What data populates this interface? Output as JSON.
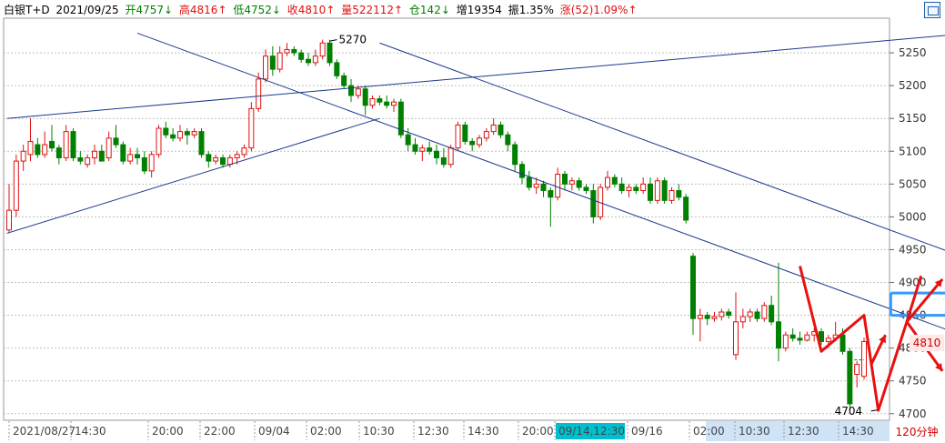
{
  "header": {
    "symbol": "白银T+D",
    "date": "2021/09/25",
    "open": "开4757↓",
    "high": "高4816↑",
    "low": "低4752↓",
    "close": "收4810↑",
    "volume": "量522112↑",
    "open_interest": "仓142↓",
    "increase": "增19354",
    "amplitude": "振1.35%",
    "change": "涨(52)1.09%↑"
  },
  "period_label": "120分钟",
  "current_price_tag": "4810",
  "annotations": {
    "high_label": "5270",
    "low_label": "4704"
  },
  "colors": {
    "up": "#e01010",
    "down": "#008000",
    "trend_line": "#1a3a8a",
    "highlight_box": "#3399ff",
    "arrow": "#e81010",
    "grid": "#bfbfbf"
  },
  "chart_data": {
    "type": "candlestick",
    "ylim": [
      4690,
      5300
    ],
    "y_ticks": [
      4700,
      4750,
      4800,
      4850,
      4900,
      4950,
      5000,
      5050,
      5100,
      5150,
      5200,
      5250
    ],
    "x_labels": [
      "2021/08/27",
      "14:30",
      "20:00",
      "22:00",
      "09/04",
      "02:00",
      "10:30",
      "12:30",
      "14:30",
      "20:00",
      "09/14,12:30",
      "09/16",
      "02:00",
      "10:30",
      "12:30",
      "14:30"
    ],
    "x_highlight": "09/14,12:30",
    "candles": [
      [
        4980,
        5050,
        4975,
        5010
      ],
      [
        5010,
        5095,
        5000,
        5085
      ],
      [
        5085,
        5110,
        5070,
        5100
      ],
      [
        5095,
        5150,
        5085,
        5115
      ],
      [
        5110,
        5120,
        5090,
        5095
      ],
      [
        5095,
        5130,
        5090,
        5110
      ],
      [
        5115,
        5140,
        5100,
        5105
      ],
      [
        5105,
        5110,
        5080,
        5090
      ],
      [
        5090,
        5140,
        5085,
        5130
      ],
      [
        5130,
        5135,
        5085,
        5090
      ],
      [
        5090,
        5100,
        5080,
        5085
      ],
      [
        5080,
        5095,
        5075,
        5090
      ],
      [
        5090,
        5110,
        5080,
        5100
      ],
      [
        5100,
        5110,
        5085,
        5085
      ],
      [
        5090,
        5130,
        5085,
        5120
      ],
      [
        5120,
        5140,
        5105,
        5110
      ],
      [
        5110,
        5115,
        5080,
        5085
      ],
      [
        5085,
        5105,
        5080,
        5095
      ],
      [
        5095,
        5105,
        5080,
        5090
      ],
      [
        5090,
        5100,
        5065,
        5070
      ],
      [
        5070,
        5100,
        5060,
        5095
      ],
      [
        5095,
        5140,
        5090,
        5135
      ],
      [
        5135,
        5145,
        5120,
        5125
      ],
      [
        5125,
        5135,
        5115,
        5120
      ],
      [
        5120,
        5140,
        5115,
        5130
      ],
      [
        5130,
        5135,
        5110,
        5125
      ],
      [
        5125,
        5135,
        5120,
        5130
      ],
      [
        5130,
        5135,
        5090,
        5095
      ],
      [
        5095,
        5100,
        5075,
        5085
      ],
      [
        5085,
        5095,
        5080,
        5090
      ],
      [
        5090,
        5095,
        5075,
        5080
      ],
      [
        5080,
        5095,
        5075,
        5090
      ],
      [
        5090,
        5100,
        5080,
        5095
      ],
      [
        5095,
        5110,
        5090,
        5105
      ],
      [
        5105,
        5175,
        5100,
        5165
      ],
      [
        5165,
        5220,
        5160,
        5210
      ],
      [
        5210,
        5255,
        5205,
        5245
      ],
      [
        5245,
        5260,
        5215,
        5225
      ],
      [
        5225,
        5260,
        5220,
        5250
      ],
      [
        5250,
        5265,
        5245,
        5255
      ],
      [
        5255,
        5260,
        5245,
        5250
      ],
      [
        5250,
        5255,
        5235,
        5240
      ],
      [
        5240,
        5250,
        5230,
        5235
      ],
      [
        5235,
        5255,
        5230,
        5245
      ],
      [
        5245,
        5270,
        5240,
        5265
      ],
      [
        5265,
        5270,
        5230,
        5235
      ],
      [
        5235,
        5240,
        5210,
        5215
      ],
      [
        5215,
        5220,
        5195,
        5200
      ],
      [
        5200,
        5210,
        5175,
        5185
      ],
      [
        5185,
        5200,
        5180,
        5195
      ],
      [
        5195,
        5200,
        5155,
        5170
      ],
      [
        5170,
        5185,
        5165,
        5180
      ],
      [
        5180,
        5185,
        5170,
        5175
      ],
      [
        5175,
        5185,
        5165,
        5170
      ],
      [
        5170,
        5180,
        5160,
        5175
      ],
      [
        5175,
        5180,
        5120,
        5125
      ],
      [
        5125,
        5135,
        5100,
        5110
      ],
      [
        5110,
        5120,
        5095,
        5100
      ],
      [
        5100,
        5110,
        5085,
        5105
      ],
      [
        5105,
        5115,
        5095,
        5100
      ],
      [
        5100,
        5110,
        5080,
        5090
      ],
      [
        5090,
        5105,
        5075,
        5080
      ],
      [
        5080,
        5110,
        5075,
        5105
      ],
      [
        5105,
        5145,
        5100,
        5140
      ],
      [
        5140,
        5145,
        5110,
        5115
      ],
      [
        5115,
        5120,
        5100,
        5110
      ],
      [
        5110,
        5125,
        5105,
        5120
      ],
      [
        5120,
        5135,
        5115,
        5130
      ],
      [
        5130,
        5150,
        5125,
        5140
      ],
      [
        5140,
        5145,
        5120,
        5125
      ],
      [
        5125,
        5130,
        5100,
        5110
      ],
      [
        5110,
        5115,
        5070,
        5080
      ],
      [
        5080,
        5085,
        5050,
        5060
      ],
      [
        5060,
        5070,
        5040,
        5045
      ],
      [
        5045,
        5060,
        5035,
        5050
      ],
      [
        5050,
        5055,
        5030,
        5040
      ],
      [
        5040,
        5045,
        4985,
        5030
      ],
      [
        5030,
        5075,
        5025,
        5065
      ],
      [
        5065,
        5070,
        5040,
        5050
      ],
      [
        5050,
        5060,
        5040,
        5055
      ],
      [
        5055,
        5060,
        5040,
        5045
      ],
      [
        5045,
        5050,
        5035,
        5040
      ],
      [
        5040,
        5050,
        4990,
        5000
      ],
      [
        5000,
        5050,
        4995,
        5045
      ],
      [
        5045,
        5070,
        5040,
        5060
      ],
      [
        5060,
        5065,
        5045,
        5050
      ],
      [
        5050,
        5060,
        5035,
        5040
      ],
      [
        5040,
        5050,
        5030,
        5045
      ],
      [
        5045,
        5050,
        5035,
        5040
      ],
      [
        5040,
        5060,
        5035,
        5050
      ],
      [
        5050,
        5060,
        5020,
        5025
      ],
      [
        5025,
        5060,
        5020,
        5055
      ],
      [
        5055,
        5060,
        5020,
        5025
      ],
      [
        5025,
        5045,
        5020,
        5040
      ],
      [
        5040,
        5050,
        5025,
        5030
      ],
      [
        5030,
        5035,
        4990,
        4995
      ],
      [
        4940,
        4945,
        4820,
        4845
      ],
      [
        4845,
        4860,
        4810,
        4850
      ],
      [
        4850,
        4855,
        4835,
        4845
      ],
      [
        4845,
        4855,
        4840,
        4848
      ],
      [
        4848,
        4860,
        4842,
        4855
      ],
      [
        4855,
        4860,
        4845,
        4850
      ],
      [
        4790,
        4885,
        4782,
        4840
      ],
      [
        4840,
        4860,
        4830,
        4848
      ],
      [
        4848,
        4860,
        4840,
        4855
      ],
      [
        4855,
        4860,
        4840,
        4845
      ],
      [
        4845,
        4870,
        4840,
        4865
      ],
      [
        4865,
        4880,
        4835,
        4840
      ],
      [
        4840,
        4930,
        4780,
        4800
      ],
      [
        4800,
        4825,
        4795,
        4820
      ],
      [
        4820,
        4830,
        4810,
        4815
      ],
      [
        4815,
        4825,
        4805,
        4812
      ],
      [
        4812,
        4825,
        4810,
        4820
      ],
      [
        4820,
        4830,
        4810,
        4825
      ],
      [
        4825,
        4830,
        4805,
        4810
      ],
      [
        4810,
        4820,
        4800,
        4815
      ],
      [
        4815,
        4840,
        4810,
        4820
      ],
      [
        4820,
        4830,
        4790,
        4795
      ],
      [
        4795,
        4800,
        4705,
        4715
      ],
      [
        4760,
        4780,
        4740,
        4775
      ],
      [
        4757,
        4816,
        4752,
        4810
      ]
    ]
  }
}
